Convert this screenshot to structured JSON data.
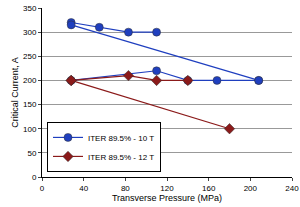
{
  "chart_data": {
    "type": "line",
    "x_label": "Transverse Pressure (MPa)",
    "y_label": "Critical Current, A",
    "xlim": [
      0,
      240
    ],
    "xticks": [
      0,
      40,
      80,
      120,
      160,
      200,
      240
    ],
    "ylim": [
      0,
      350
    ],
    "yticks": [
      0,
      50,
      100,
      150,
      200,
      250,
      300,
      350
    ],
    "grid": true,
    "legend": "lower left",
    "series": [
      {
        "name": "ITER 89.5% - 10 T",
        "color": "#1f3fbf",
        "marker": "circle",
        "line_style": "solid",
        "x": [
          28,
          55,
          83,
          110,
          null,
          28,
          208,
          null,
          28,
          110,
          140,
          168,
          208
        ],
        "values": [
          320,
          310,
          300,
          300,
          null,
          315,
          200,
          null,
          200,
          220,
          200,
          200,
          200
        ]
      },
      {
        "name": "ITER 89.5% - 12 T",
        "color": "#8b1a1a",
        "marker": "diamond",
        "line_style": "solid",
        "x": [
          28,
          83,
          110,
          140,
          null,
          28,
          180
        ],
        "values": [
          200,
          210,
          200,
          200,
          null,
          200,
          100
        ]
      }
    ]
  }
}
